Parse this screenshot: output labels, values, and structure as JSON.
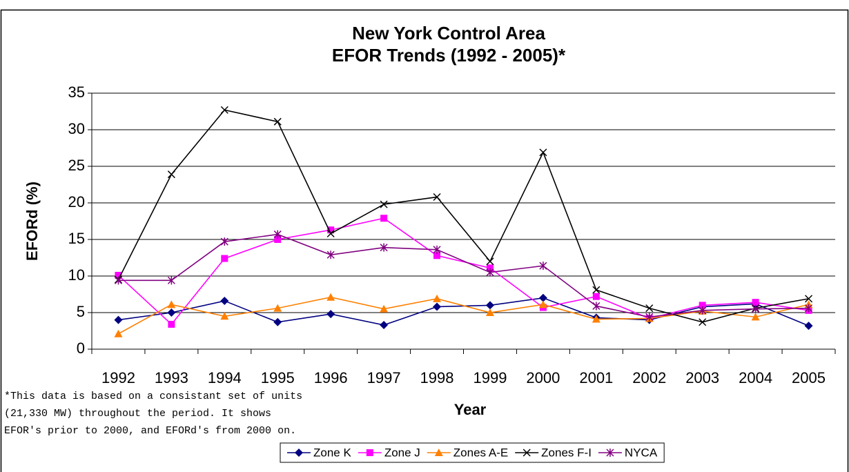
{
  "chart_data": {
    "type": "line",
    "title": [
      "New York Control Area",
      "EFOR Trends (1992 - 2005)*"
    ],
    "x_label": "Year",
    "y_label": "EFORd (%)",
    "note": [
      "*This data is based on a consistant set of units",
      "(21,330 MW) throughout the period. It shows",
      "EFOR's prior to 2000, and EFORd's from 2000 on."
    ],
    "categories": [
      "1992",
      "1993",
      "1994",
      "1995",
      "1996",
      "1997",
      "1998",
      "1999",
      "2000",
      "2001",
      "2002",
      "2003",
      "2004",
      "2005"
    ],
    "ylim": [
      0,
      35
    ],
    "yticks": [
      0,
      5,
      10,
      15,
      20,
      25,
      30,
      35
    ],
    "grid": true,
    "legend": "bottom",
    "series": [
      {
        "name": "Zone K",
        "color": "#000080",
        "marker": "diamond",
        "values": [
          4,
          5,
          6.6,
          3.7,
          4.8,
          3.3,
          5.8,
          6,
          7,
          4.3,
          4,
          5.8,
          6.2,
          3.2
        ]
      },
      {
        "name": "Zone J",
        "color": "#ff00ff",
        "marker": "square",
        "values": [
          10.1,
          3.4,
          12.4,
          15,
          16.3,
          17.9,
          12.8,
          11.1,
          5.7,
          7.2,
          4.2,
          6,
          6.4,
          5.3
        ]
      },
      {
        "name": "Zones A-E",
        "color": "#ff8000",
        "marker": "triangle",
        "values": [
          2.1,
          6.1,
          4.5,
          5.6,
          7.1,
          5.5,
          6.9,
          5,
          6.1,
          4.1,
          4.2,
          5.2,
          4.4,
          6.1
        ]
      },
      {
        "name": "Zones F-I",
        "color": "#000000",
        "marker": "x",
        "values": [
          9.5,
          23.9,
          32.7,
          31.1,
          15.8,
          19.8,
          20.8,
          12,
          26.9,
          8.1,
          5.6,
          3.7,
          5.6,
          6.9
        ]
      },
      {
        "name": "NYCA",
        "color": "#800080",
        "marker": "star",
        "values": [
          9.4,
          9.4,
          14.7,
          15.7,
          12.9,
          13.9,
          13.6,
          10.5,
          11.4,
          5.9,
          4.4,
          5.3,
          5.5,
          5.6
        ]
      }
    ]
  }
}
